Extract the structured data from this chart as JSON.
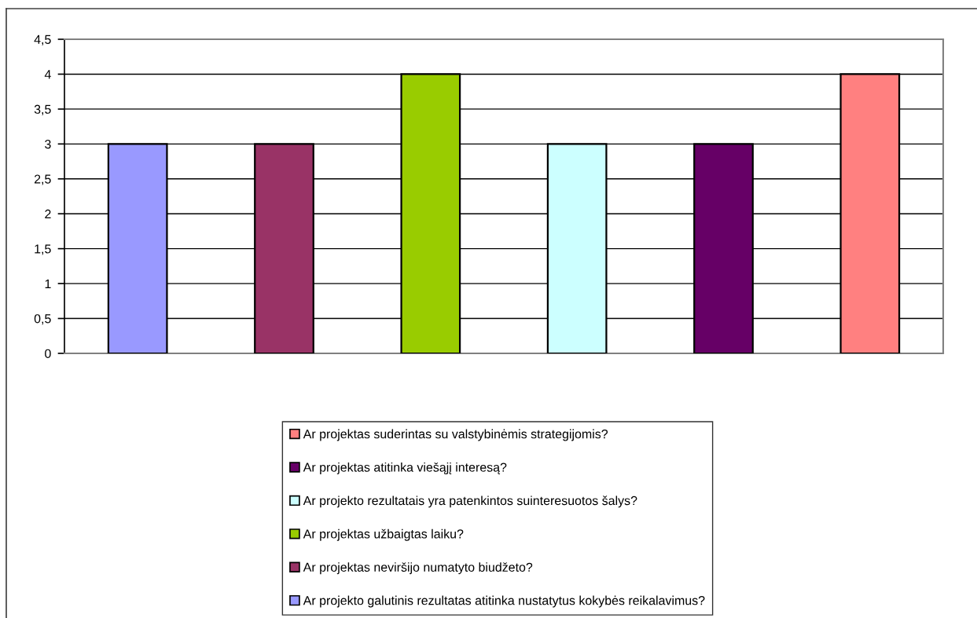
{
  "chart_data": {
    "type": "bar",
    "stacked": true,
    "categories": [
      null,
      null,
      null,
      null,
      null,
      null
    ],
    "series": [
      {
        "name": "Ar projekto galutinis rezultatas atitinka nustatytus kokybės reikalavimus?",
        "color": "#9999ff",
        "values": [
          3,
          null,
          null,
          null,
          null,
          null
        ]
      },
      {
        "name": "Ar projektas neviršijo numatyto biudžeto?",
        "color": "#993366",
        "values": [
          null,
          3,
          null,
          null,
          null,
          null
        ]
      },
      {
        "name": "Ar projektas užbaigtas laiku?",
        "color": "#99cc00",
        "values": [
          null,
          null,
          4,
          null,
          null,
          null
        ]
      },
      {
        "name": "Ar projekto rezultatais yra patenkintos suinteresuotos šalys?",
        "color": "#ccffff",
        "values": [
          null,
          null,
          null,
          3,
          null,
          null
        ]
      },
      {
        "name": "Ar projektas atitinka viešąjį interesą?",
        "color": "#660066",
        "values": [
          null,
          null,
          null,
          null,
          3,
          null
        ]
      },
      {
        "name": "Ar projektas suderintas su valstybinėmis strategijomis?",
        "color": "#ff8080",
        "values": [
          null,
          null,
          null,
          null,
          null,
          4
        ]
      }
    ],
    "ylim": [
      0,
      4.5
    ],
    "yticks": [
      0,
      {
        "value": 0.5,
        "label": "0,5"
      },
      1,
      {
        "value": 1.5,
        "label": "1,5"
      },
      2,
      {
        "value": 2.5,
        "label": "2,5"
      },
      3,
      {
        "value": 3.5,
        "label": "3,5"
      },
      4,
      {
        "value": 4.5,
        "label": "4,5"
      }
    ],
    "grid": "y",
    "legend": "bottom",
    "tick_labels": "y"
  }
}
